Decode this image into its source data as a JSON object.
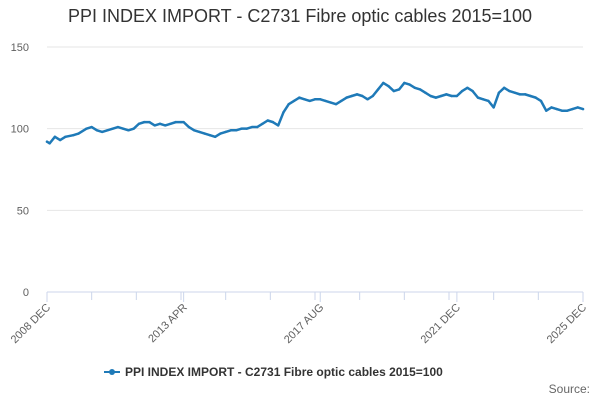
{
  "chart_data": {
    "type": "line",
    "title": "PPI INDEX IMPORT - C2731 Fibre optic cables 2015=100",
    "xlabel": "",
    "ylabel": "",
    "ylim": [
      0,
      150
    ],
    "yticks": [
      0,
      50,
      100,
      150
    ],
    "x_range_months": [
      "2008 DEC",
      "2025 DEC"
    ],
    "xticks": [
      {
        "label": "2008 DEC",
        "index": 0
      },
      {
        "label": "2013 APR",
        "index": 52
      },
      {
        "label": "2017 AUG",
        "index": 104
      },
      {
        "label": "2021 DEC",
        "index": 156
      },
      {
        "label": "2025 DEC",
        "index": 204
      }
    ],
    "series": [
      {
        "name": "PPI INDEX IMPORT - C2731 Fibre optic cables 2015=100",
        "color": "#1f7ab8",
        "anchors": [
          [
            0,
            92
          ],
          [
            1,
            91
          ],
          [
            3,
            95
          ],
          [
            5,
            93
          ],
          [
            7,
            95
          ],
          [
            10,
            96
          ],
          [
            12,
            97
          ],
          [
            15,
            100
          ],
          [
            17,
            101
          ],
          [
            19,
            99
          ],
          [
            21,
            98
          ],
          [
            23,
            99
          ],
          [
            25,
            100
          ],
          [
            27,
            101
          ],
          [
            29,
            100
          ],
          [
            31,
            99
          ],
          [
            33,
            100
          ],
          [
            35,
            103
          ],
          [
            37,
            104
          ],
          [
            39,
            104
          ],
          [
            41,
            102
          ],
          [
            43,
            103
          ],
          [
            45,
            102
          ],
          [
            47,
            103
          ],
          [
            49,
            104
          ],
          [
            51,
            104
          ],
          [
            52,
            104
          ],
          [
            54,
            101
          ],
          [
            56,
            99
          ],
          [
            58,
            98
          ],
          [
            60,
            97
          ],
          [
            62,
            96
          ],
          [
            64,
            95
          ],
          [
            66,
            97
          ],
          [
            68,
            98
          ],
          [
            70,
            99
          ],
          [
            72,
            99
          ],
          [
            74,
            100
          ],
          [
            76,
            100
          ],
          [
            78,
            101
          ],
          [
            80,
            101
          ],
          [
            82,
            103
          ],
          [
            84,
            105
          ],
          [
            86,
            104
          ],
          [
            88,
            102
          ],
          [
            90,
            110
          ],
          [
            92,
            115
          ],
          [
            94,
            117
          ],
          [
            96,
            119
          ],
          [
            98,
            118
          ],
          [
            100,
            117
          ],
          [
            102,
            118
          ],
          [
            104,
            118
          ],
          [
            106,
            117
          ],
          [
            108,
            116
          ],
          [
            110,
            115
          ],
          [
            112,
            117
          ],
          [
            114,
            119
          ],
          [
            116,
            120
          ],
          [
            118,
            121
          ],
          [
            120,
            120
          ],
          [
            122,
            118
          ],
          [
            124,
            120
          ],
          [
            126,
            124
          ],
          [
            128,
            128
          ],
          [
            130,
            126
          ],
          [
            132,
            123
          ],
          [
            134,
            124
          ],
          [
            136,
            128
          ],
          [
            138,
            127
          ],
          [
            140,
            125
          ],
          [
            142,
            124
          ],
          [
            144,
            122
          ],
          [
            146,
            120
          ],
          [
            148,
            119
          ],
          [
            150,
            120
          ],
          [
            152,
            121
          ],
          [
            154,
            120
          ],
          [
            156,
            120
          ],
          [
            158,
            123
          ],
          [
            160,
            125
          ],
          [
            162,
            123
          ],
          [
            164,
            119
          ],
          [
            166,
            118
          ],
          [
            168,
            117
          ],
          [
            170,
            113
          ],
          [
            172,
            122
          ],
          [
            174,
            125
          ],
          [
            176,
            123
          ],
          [
            178,
            122
          ],
          [
            180,
            121
          ],
          [
            182,
            121
          ],
          [
            184,
            120
          ],
          [
            186,
            119
          ],
          [
            188,
            117
          ],
          [
            190,
            111
          ],
          [
            192,
            113
          ],
          [
            194,
            112
          ],
          [
            196,
            111
          ],
          [
            198,
            111
          ],
          [
            200,
            112
          ],
          [
            202,
            113
          ],
          [
            204,
            112
          ]
        ]
      }
    ],
    "legend": "bottom-center",
    "grid": true
  },
  "footer": {
    "source_label": "Source:"
  }
}
